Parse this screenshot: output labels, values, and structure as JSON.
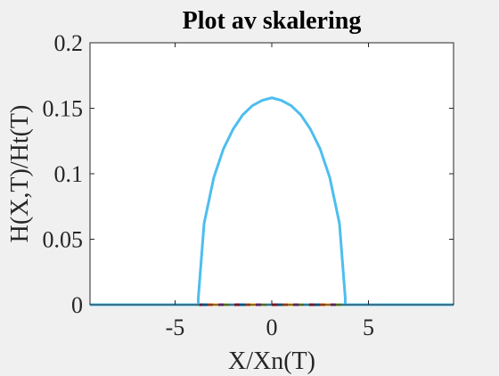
{
  "chart_data": {
    "type": "line",
    "title": "Plot av skalering",
    "xlabel": "X/Xn(T)",
    "ylabel": "H(X,T)/Ht(T)",
    "xlim": [
      -9.4,
      9.4
    ],
    "ylim": [
      0,
      0.2
    ],
    "xticks": [
      -5,
      0,
      5
    ],
    "yticks": [
      0,
      0.05,
      0.1,
      0.15,
      0.2
    ],
    "ytick_labels": [
      "0",
      "0.05",
      "0.1",
      "0.15",
      "0.2"
    ],
    "grid": false,
    "legend": "none",
    "series": [
      {
        "color": "#4DBEEE",
        "x": [
          -9.4,
          -3.8,
          -3.8,
          -3.5,
          -3.0,
          -2.5,
          -2.0,
          -1.5,
          -1.0,
          -0.5,
          0,
          0.5,
          1.0,
          1.5,
          2.0,
          2.5,
          3.0,
          3.5,
          3.8,
          3.8,
          9.4
        ],
        "y": [
          0,
          0,
          0.005,
          0.062,
          0.097,
          0.119,
          0.134,
          0.145,
          0.152,
          0.156,
          0.158,
          0.156,
          0.152,
          0.145,
          0.134,
          0.119,
          0.097,
          0.062,
          0.005,
          0,
          0
        ]
      }
    ],
    "baseline_colors": [
      "#0072BD",
      "#D95319",
      "#EDB120",
      "#7E2F8E",
      "#77AC30",
      "#4DBEEE",
      "#A2142F"
    ]
  }
}
